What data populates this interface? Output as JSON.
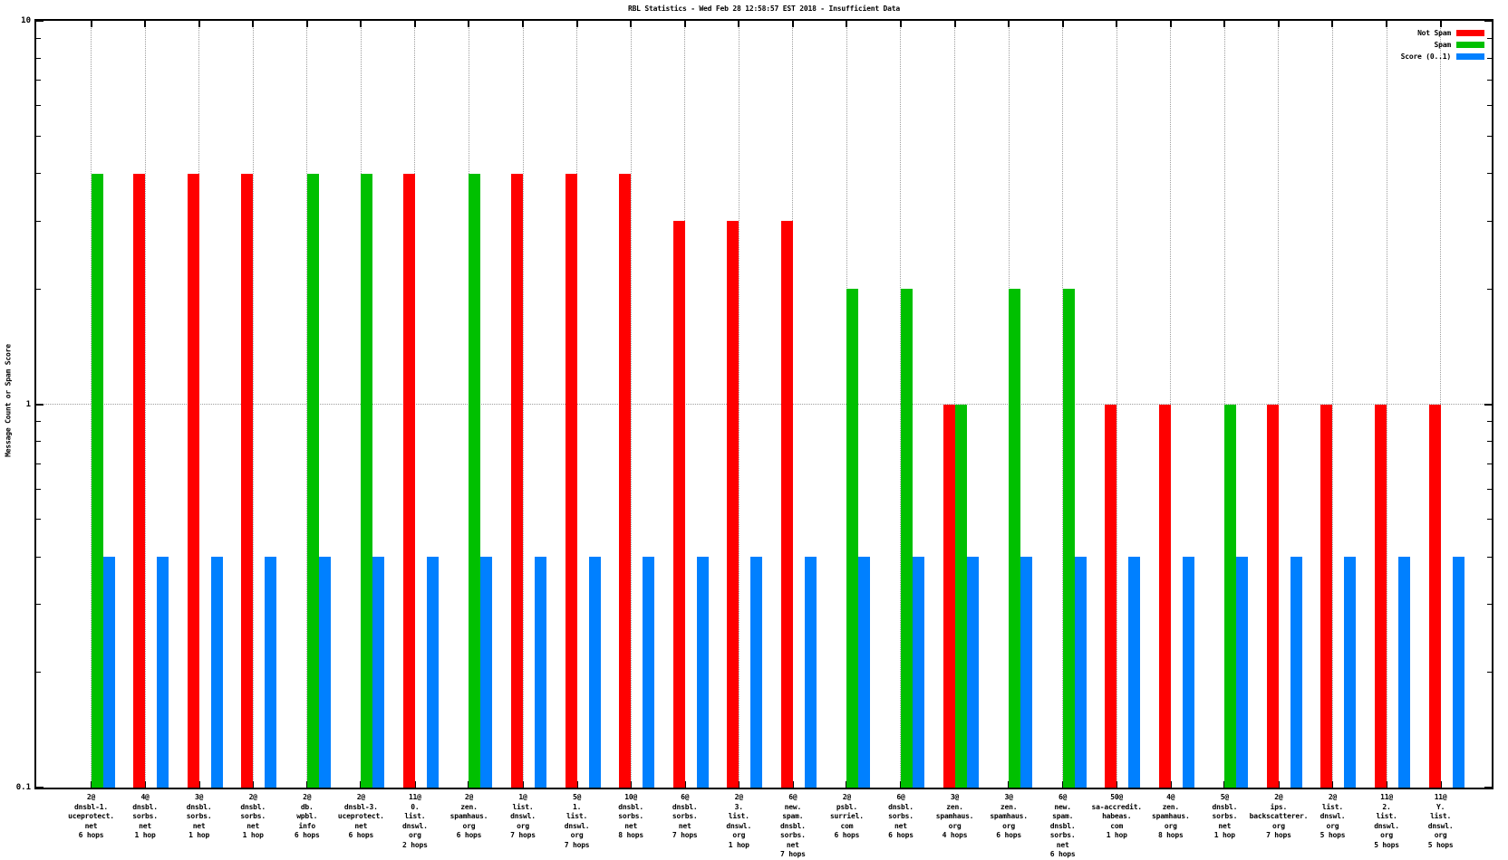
{
  "chart_data": {
    "type": "bar",
    "title": "RBL Statistics - Wed Feb 28 12:58:57 EST 2018 - Insufficient Data",
    "ylabel": "Message Count or Spam Score",
    "xlabel": "",
    "yscale": "log",
    "ylim": [
      0.1,
      10
    ],
    "ytick_labels": [
      {
        "value": 10,
        "label": "10"
      },
      {
        "value": 1,
        "label": "1"
      },
      {
        "value": 0.1,
        "label": "0.1"
      }
    ],
    "grid": {
      "vertical": "dotted line at every category",
      "horizontal": "dotted line at y=1"
    },
    "legend_position": "top-right-inside",
    "series": [
      {
        "name": "Not Spam",
        "color": "#ff0000",
        "values": [
          null,
          4,
          4,
          4,
          null,
          null,
          4,
          null,
          4,
          4,
          4,
          3,
          3,
          3,
          null,
          null,
          1,
          null,
          null,
          1,
          1,
          null,
          1,
          1,
          1,
          1
        ]
      },
      {
        "name": "Spam",
        "color": "#00c000",
        "values": [
          4,
          null,
          null,
          null,
          4,
          4,
          null,
          4,
          null,
          null,
          null,
          null,
          null,
          null,
          2,
          2,
          1,
          2,
          2,
          null,
          null,
          1,
          null,
          null,
          null,
          null
        ]
      },
      {
        "name": "Score (0..1)",
        "color": "#0080ff",
        "values": [
          0.4,
          0.4,
          0.4,
          0.4,
          0.4,
          0.4,
          0.4,
          0.4,
          0.4,
          0.4,
          0.4,
          0.4,
          0.4,
          0.4,
          0.4,
          0.4,
          0.4,
          0.4,
          0.4,
          0.4,
          0.4,
          0.4,
          0.4,
          0.4,
          0.4,
          0.4
        ]
      }
    ],
    "categories": [
      {
        "lines": [
          "2@",
          "dnsbl-1.",
          "uceprotect.",
          "net",
          "6 hops"
        ]
      },
      {
        "lines": [
          "4@",
          "dnsbl.",
          "sorbs.",
          "net",
          "1 hop"
        ]
      },
      {
        "lines": [
          "3@",
          "dnsbl.",
          "sorbs.",
          "net",
          "1 hop"
        ]
      },
      {
        "lines": [
          "2@",
          "dnsbl.",
          "sorbs.",
          "net",
          "1 hop"
        ]
      },
      {
        "lines": [
          "2@",
          "db.",
          "wpbl.",
          "info",
          "6 hops"
        ]
      },
      {
        "lines": [
          "2@",
          "dnsbl-3.",
          "uceprotect.",
          "net",
          "6 hops"
        ]
      },
      {
        "lines": [
          "11@",
          "0.",
          "list.",
          "dnswl.",
          "org",
          "2 hops"
        ]
      },
      {
        "lines": [
          "2@",
          "zen.",
          "spamhaus.",
          "org",
          "6 hops"
        ]
      },
      {
        "lines": [
          "1@",
          "list.",
          "dnswl.",
          "org",
          "7 hops"
        ]
      },
      {
        "lines": [
          "5@",
          "1.",
          "list.",
          "dnswl.",
          "org",
          "7 hops"
        ]
      },
      {
        "lines": [
          "10@",
          "dnsbl.",
          "sorbs.",
          "net",
          "8 hops"
        ]
      },
      {
        "lines": [
          "6@",
          "dnsbl.",
          "sorbs.",
          "net",
          "7 hops"
        ]
      },
      {
        "lines": [
          "2@",
          "3.",
          "list.",
          "dnswl.",
          "org",
          "1 hop"
        ]
      },
      {
        "lines": [
          "6@",
          "new.",
          "spam.",
          "dnsbl.",
          "sorbs.",
          "net",
          "7 hops"
        ]
      },
      {
        "lines": [
          "2@",
          "psbl.",
          "surriel.",
          "com",
          "6 hops"
        ]
      },
      {
        "lines": [
          "6@",
          "dnsbl.",
          "sorbs.",
          "net",
          "6 hops"
        ]
      },
      {
        "lines": [
          "3@",
          "zen.",
          "spamhaus.",
          "org",
          "4 hops"
        ]
      },
      {
        "lines": [
          "3@",
          "zen.",
          "spamhaus.",
          "org",
          "6 hops"
        ]
      },
      {
        "lines": [
          "6@",
          "new.",
          "spam.",
          "dnsbl.",
          "sorbs.",
          "net",
          "6 hops"
        ]
      },
      {
        "lines": [
          "50@",
          "sa-accredit.",
          "habeas.",
          "com",
          "1 hop"
        ]
      },
      {
        "lines": [
          "4@",
          "zen.",
          "spamhaus.",
          "org",
          "8 hops"
        ]
      },
      {
        "lines": [
          "5@",
          "dnsbl.",
          "sorbs.",
          "net",
          "1 hop"
        ]
      },
      {
        "lines": [
          "2@",
          "ips.",
          "backscatterer.",
          "org",
          "7 hops"
        ]
      },
      {
        "lines": [
          "2@",
          "list.",
          "dnswl.",
          "org",
          "5 hops"
        ]
      },
      {
        "lines": [
          "11@",
          "2.",
          "list.",
          "dnswl.",
          "org",
          "5 hops"
        ]
      },
      {
        "lines": [
          "11@",
          "Y.",
          "list.",
          "dnswl.",
          "org",
          "5 hops"
        ]
      }
    ]
  }
}
